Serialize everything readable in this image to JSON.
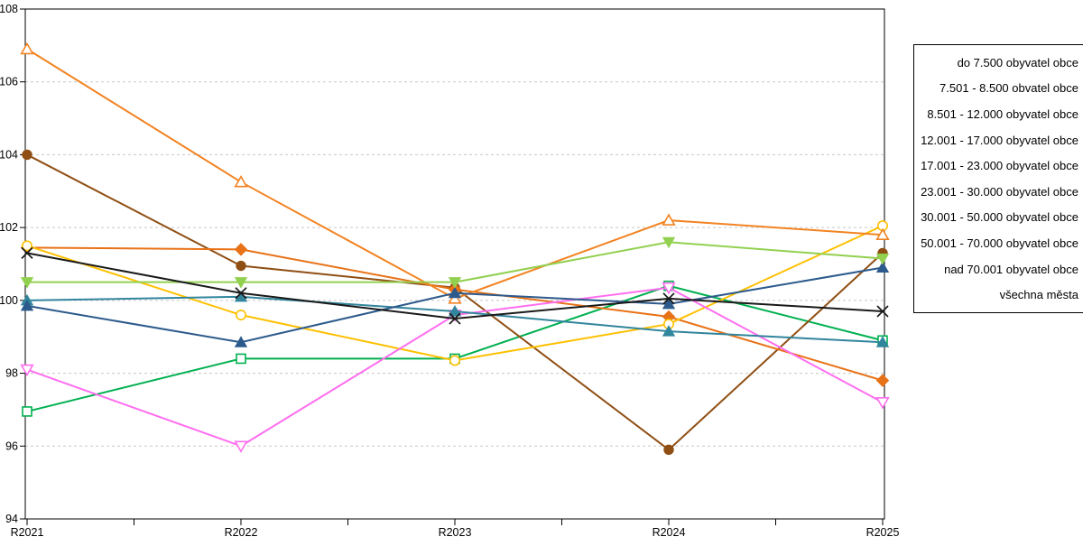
{
  "chart_data": {
    "type": "line",
    "title": "",
    "xlabel": "",
    "ylabel": "",
    "categories": [
      "R2021",
      "R2022",
      "R2023",
      "R2024",
      "R2025"
    ],
    "series": [
      {
        "name": "do 7.500 obyvatel obce",
        "color": "#00B050",
        "marker": "square-open",
        "values": [
          96.95,
          98.4,
          98.4,
          100.4,
          98.9
        ]
      },
      {
        "name": "7.501 - 8.500 obvatel obce",
        "color": "#FF6EF0",
        "marker": "triangle-down-open",
        "values": [
          98.1,
          96.0,
          99.6,
          100.35,
          97.2
        ]
      },
      {
        "name": "8.501 - 12.000 obyvatel obce",
        "color": "#F28322",
        "marker": "triangle-up-open",
        "values": [
          106.9,
          103.25,
          100.05,
          102.2,
          101.8
        ]
      },
      {
        "name": "12.001 - 17.000 obyvatel obce",
        "color": "#2C5A8C",
        "marker": "triangle-up",
        "values": [
          99.85,
          98.85,
          100.2,
          99.9,
          100.9
        ]
      },
      {
        "name": "17.001 - 23.000 obyvatel obce",
        "color": "#31859C",
        "marker": "triangle-up",
        "values": [
          100.0,
          100.1,
          99.7,
          99.15,
          98.85
        ]
      },
      {
        "name": "23.001 - 30.000 obyvatel obce",
        "color": "#92D050",
        "marker": "triangle-down",
        "values": [
          100.5,
          100.5,
          100.5,
          101.6,
          101.15
        ]
      },
      {
        "name": "30.001 - 50.000 obyvatel obce",
        "color": "#FFC000",
        "marker": "circle-open",
        "values": [
          101.5,
          99.6,
          98.35,
          99.35,
          102.05
        ]
      },
      {
        "name": "50.001 - 70.000 obyvatel obce",
        "color": "#E87217",
        "marker": "diamond",
        "values": [
          101.45,
          101.4,
          100.3,
          99.55,
          97.8
        ]
      },
      {
        "name": "nad 70.001 obyvatel obce",
        "color": "#8F4F14",
        "marker": "circle",
        "values": [
          104.0,
          100.95,
          100.35,
          95.9,
          101.3
        ]
      },
      {
        "name": "všechna města",
        "color": "#1A1A1A",
        "marker": "x",
        "values": [
          101.3,
          100.2,
          99.5,
          100.05,
          99.7
        ]
      }
    ],
    "ylim": [
      94,
      108
    ],
    "yticks": [
      94,
      96,
      98,
      100,
      102,
      104,
      106,
      108
    ],
    "y_tick_labels": [
      "94",
      "96",
      "98",
      "100",
      "102",
      "104",
      "106",
      "108"
    ],
    "grid": "horizontal-dashed",
    "gridline_color": "#C8C8C8",
    "axis_color": "#000000",
    "background_color": "#FFFFFF",
    "legend_position": "right"
  }
}
